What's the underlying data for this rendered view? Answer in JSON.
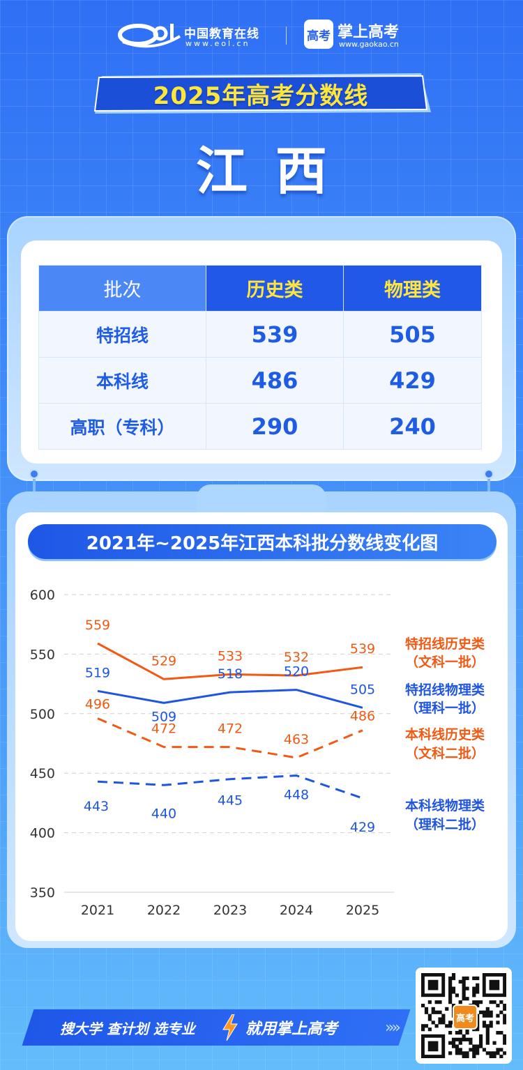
{
  "header": {
    "eol_name": "中国教育在线",
    "eol_url": "www.eol.cn",
    "gaokao_icon_text": "高考",
    "gaokao_name": "掌上高考",
    "gaokao_url": "www.gaokao.cn"
  },
  "banner": {
    "title": "2025年高考分数线"
  },
  "province": "江西",
  "table": {
    "headers": [
      "批次",
      "历史类",
      "物理类"
    ],
    "rows": [
      {
        "batch": "特招线",
        "history": "539",
        "physics": "505"
      },
      {
        "batch": "本科线",
        "history": "486",
        "physics": "429"
      },
      {
        "batch": "高职（专科）",
        "history": "290",
        "physics": "240"
      }
    ]
  },
  "chart_title": "2021年~2025年江西本科批分数线变化图",
  "chart_data": {
    "type": "line",
    "title": "2021年~2025年江西本科批分数线变化图",
    "x": [
      "2021",
      "2022",
      "2023",
      "2024",
      "2025"
    ],
    "ylim": [
      350,
      600
    ],
    "yticks": [
      "600",
      "550",
      "500",
      "450",
      "400",
      "350"
    ],
    "grid": true,
    "legend_placement": "right",
    "series": [
      {
        "name_line1": "特招线历史类",
        "name_line2": "（文科一批）",
        "values": [
          559,
          529,
          533,
          532,
          539
        ],
        "color": "#f05a14",
        "dashed": false
      },
      {
        "name_line1": "特招线物理类",
        "name_line2": "（理科一批）",
        "values": [
          519,
          509,
          518,
          520,
          505
        ],
        "color": "#1f55e0",
        "dashed": false
      },
      {
        "name_line1": "本科线历史类",
        "name_line2": "（文科二批）",
        "values": [
          496,
          472,
          472,
          463,
          486
        ],
        "color": "#f05a14",
        "dashed": true
      },
      {
        "name_line1": "本科线物理类",
        "name_line2": "（理科二批）",
        "values": [
          443,
          440,
          445,
          448,
          429
        ],
        "color": "#1f55e0",
        "dashed": true
      }
    ]
  },
  "footer": {
    "slogan": "搜大学  查计划  选专业",
    "cta": "就用掌上高考",
    "arrows": "»»",
    "qr_badge": "高考"
  },
  "colors": {
    "primary": "#2158e8",
    "accent_yellow": "#ffe63a",
    "orange": "#f05a14"
  }
}
